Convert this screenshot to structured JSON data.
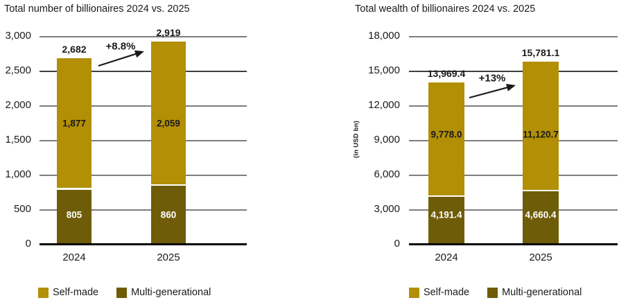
{
  "colors": {
    "self_made": "#B28F05",
    "multi_generational": "#6E5C08",
    "text": "#1A1A1A",
    "label_on_dark": "#FFFFFF",
    "grid": "#7D7D7D",
    "grid_dark": "#3F3F3F",
    "axis": "#000000",
    "background": "#FFFFFF"
  },
  "legend": {
    "items": [
      {
        "label": "Self-made",
        "color_key": "self_made"
      },
      {
        "label": "Multi-generational",
        "color_key": "multi_generational"
      }
    ]
  },
  "chart_data": [
    {
      "type": "bar",
      "stacked": true,
      "title": "Total number of billionaires 2024 vs. 2025",
      "xlabel": "",
      "ylabel": "",
      "categories": [
        "2024",
        "2025"
      ],
      "series": [
        {
          "name": "Self-made",
          "values": [
            1877,
            2059
          ],
          "labels": [
            "1,877",
            "2,059"
          ]
        },
        {
          "name": "Multi-generational",
          "values": [
            805,
            860
          ],
          "labels": [
            "805",
            "860"
          ]
        }
      ],
      "totals": [
        2682,
        2919
      ],
      "totals_labels": [
        "2,682",
        "2,919"
      ],
      "growth_annotation": "+8.8%",
      "ylim": [
        0,
        3000
      ],
      "ytick_step": 500,
      "ytick_labels": [
        "3,000",
        "2,500",
        "2,000",
        "1,500",
        "1,000",
        "500",
        "0"
      ],
      "grid": true,
      "legend_position": "bottom"
    },
    {
      "type": "bar",
      "stacked": true,
      "title": "Total wealth of billionaires 2024 vs. 2025",
      "xlabel": "",
      "ylabel": "(in USD bn)",
      "categories": [
        "2024",
        "2025"
      ],
      "series": [
        {
          "name": "Self-made",
          "values": [
            9778.0,
            11120.7
          ],
          "labels": [
            "9,778.0",
            "11,120.7"
          ]
        },
        {
          "name": "Multi-generational",
          "values": [
            4191.4,
            4660.4
          ],
          "labels": [
            "4,191.4",
            "4,660.4"
          ]
        }
      ],
      "totals": [
        13969.4,
        15781.1
      ],
      "totals_labels": [
        "13,969.4",
        "15,781.1"
      ],
      "growth_annotation": "+13%",
      "ylim": [
        0,
        18000
      ],
      "ytick_step": 3000,
      "ytick_labels": [
        "18,000",
        "15,000",
        "12,000",
        "9,000",
        "6,000",
        "3,000",
        "0"
      ],
      "grid": true,
      "legend_position": "bottom"
    }
  ]
}
